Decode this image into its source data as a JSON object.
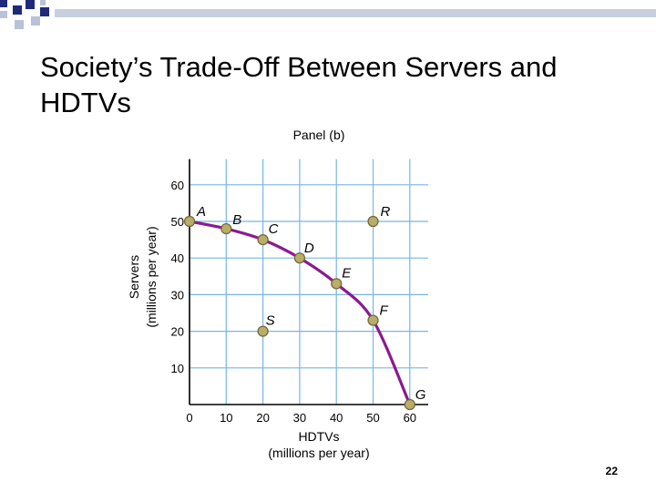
{
  "slide": {
    "title": "Society’s Trade-Off Between Servers and HDTVs",
    "page_number": "22"
  },
  "colors": {
    "decor_dark": "#1f2a7a",
    "decor_light": "#b9c2d6",
    "grid": "#77b6e6",
    "curve": "#8b1a8f",
    "point_fill": "#b9ad6a",
    "point_stroke": "#6e6636"
  },
  "chart_data": {
    "type": "scatter",
    "title": "Panel (b)",
    "xlabel": "HDTVs",
    "xlabel_sub": "(millions per year)",
    "ylabel": "Servers",
    "ylabel_sub": "(millions per year)",
    "xlim": [
      0,
      65
    ],
    "ylim": [
      0,
      67
    ],
    "x_ticks": [
      0,
      10,
      20,
      30,
      40,
      50,
      60
    ],
    "y_ticks": [
      10,
      20,
      30,
      40,
      50,
      60
    ],
    "grid": true,
    "curve": {
      "name": "Production possibilities curve",
      "points": [
        [
          0,
          50
        ],
        [
          10,
          48
        ],
        [
          20,
          45
        ],
        [
          30,
          40
        ],
        [
          40,
          33
        ],
        [
          50,
          23
        ],
        [
          60,
          0
        ]
      ]
    },
    "points": [
      {
        "label": "A",
        "x": 0,
        "y": 50
      },
      {
        "label": "B",
        "x": 10,
        "y": 48
      },
      {
        "label": "C",
        "x": 20,
        "y": 45
      },
      {
        "label": "D",
        "x": 30,
        "y": 40
      },
      {
        "label": "E",
        "x": 40,
        "y": 33
      },
      {
        "label": "F",
        "x": 50,
        "y": 23
      },
      {
        "label": "G",
        "x": 60,
        "y": 0
      },
      {
        "label": "R",
        "x": 50,
        "y": 50
      },
      {
        "label": "S",
        "x": 20,
        "y": 20
      }
    ]
  }
}
